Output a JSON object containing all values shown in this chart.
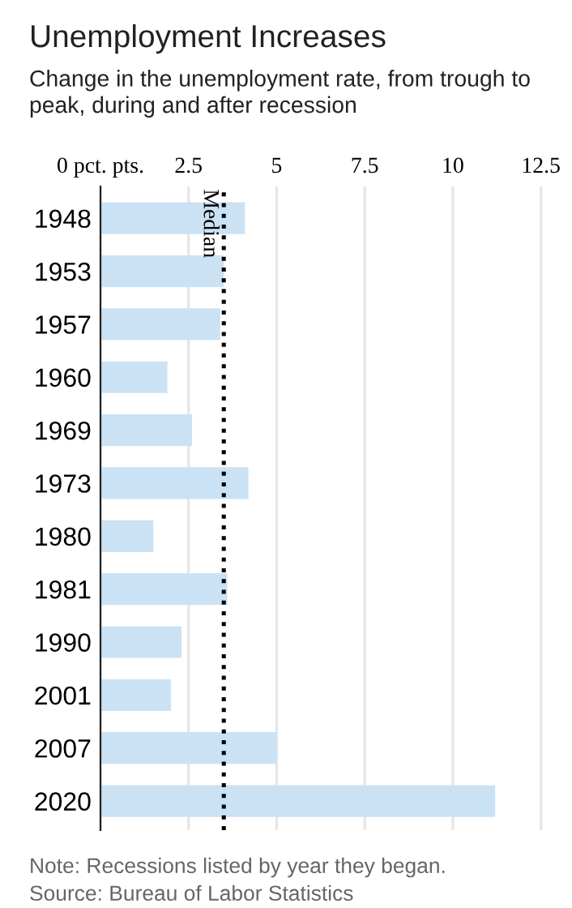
{
  "chart_data": {
    "type": "bar",
    "orientation": "horizontal",
    "title": "Unemployment Increases",
    "subtitle": "Change in the unemployment rate, from trough to peak, during and after recession",
    "categories": [
      "1948",
      "1953",
      "1957",
      "1960",
      "1969",
      "1973",
      "1980",
      "1981",
      "1990",
      "2001",
      "2007",
      "2020"
    ],
    "values": [
      4.1,
      3.5,
      3.4,
      1.9,
      2.6,
      4.2,
      1.5,
      3.6,
      2.3,
      2.0,
      5.0,
      11.2
    ],
    "color": "#cbe2f5",
    "xlim": [
      0,
      12.6
    ],
    "xticks": [
      {
        "value": 0,
        "label": "0 pct. pts."
      },
      2.5,
      5,
      7.5,
      10,
      12.5
    ],
    "grid": "x",
    "ref_lines": [
      {
        "axis": "x",
        "value": 3.5,
        "label": "Median",
        "color": "#000000",
        "line_style": "dotted"
      }
    ],
    "annotations": [
      "Note: Recessions listed by year they began.",
      "Source: Bureau of Labor Statistics"
    ]
  }
}
